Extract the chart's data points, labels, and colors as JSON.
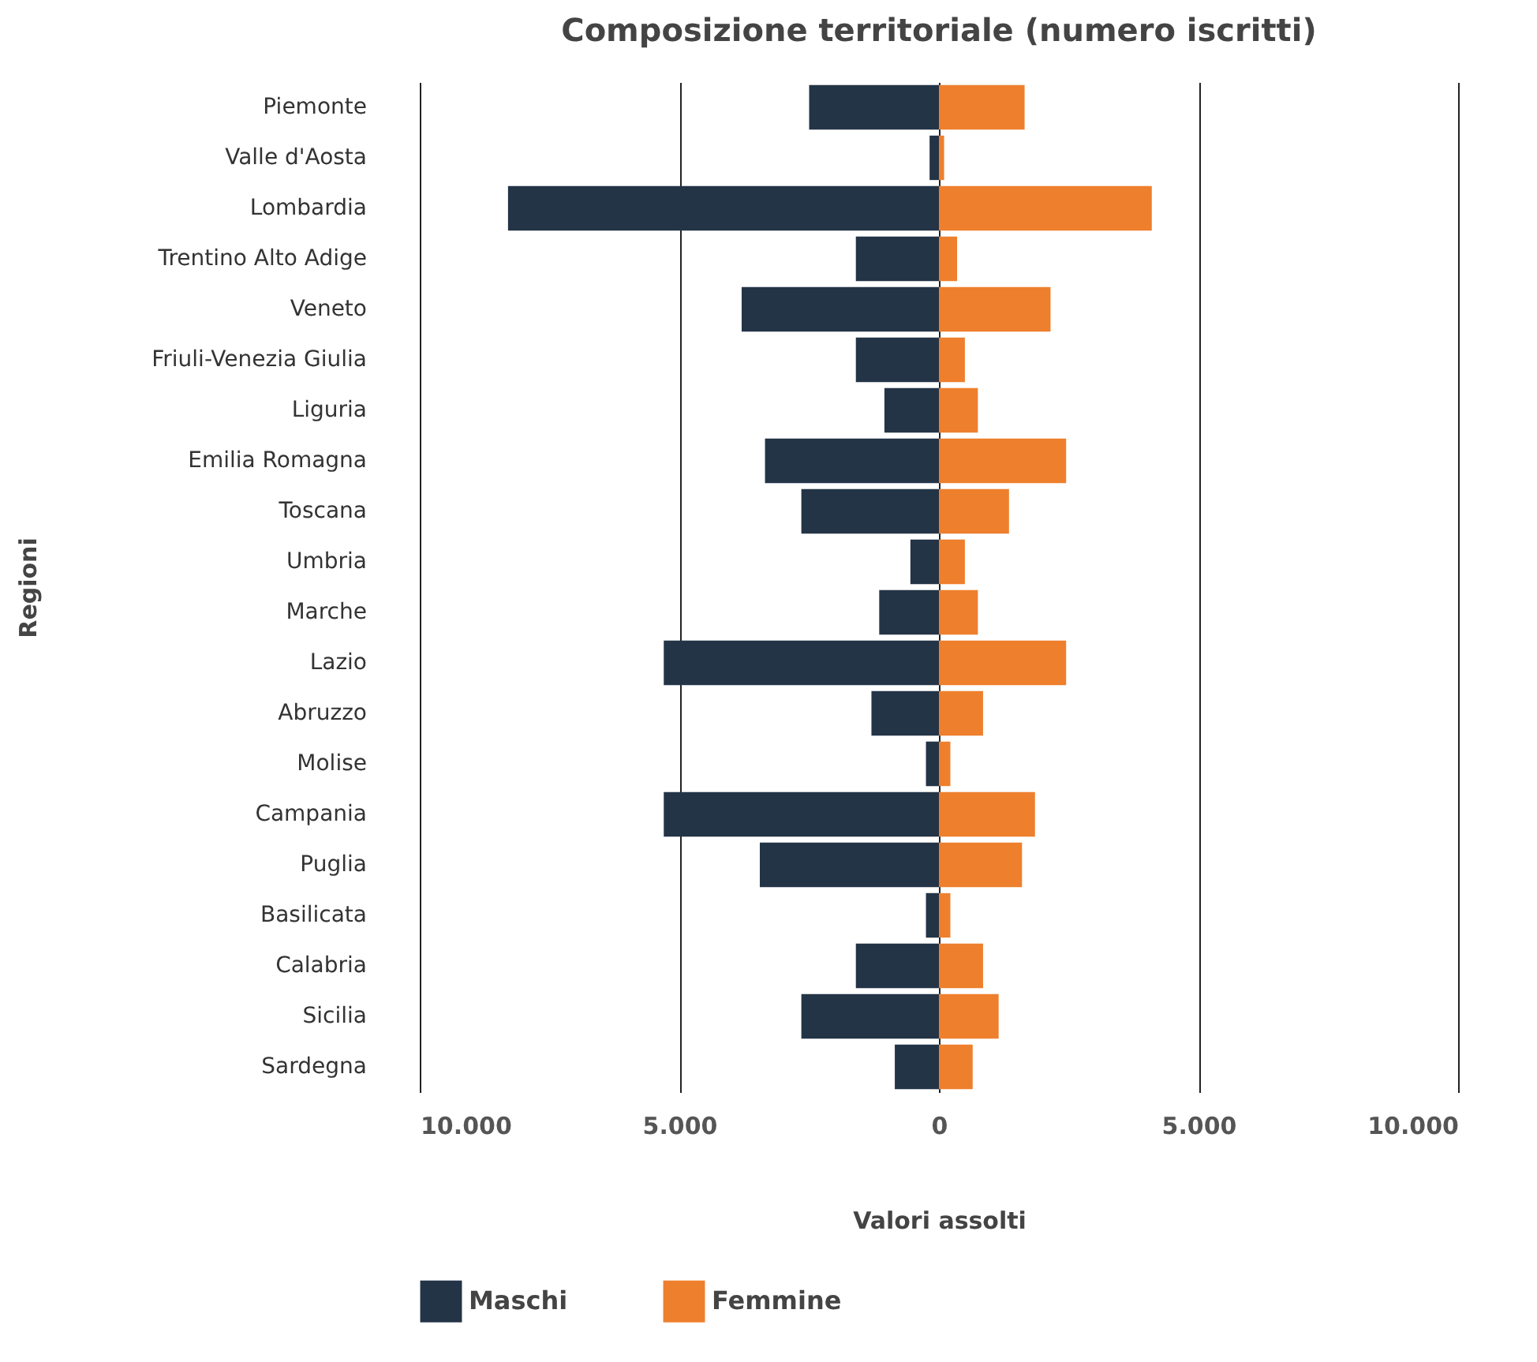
{
  "chart_data": {
    "type": "bar",
    "orientation": "horizontal",
    "title": "Composizione territoriale (numero iscritti)",
    "xlabel": "Valori assolti",
    "ylabel": "Regioni",
    "categories": [
      "Piemonte",
      "Valle d'Aosta",
      "Lombardia",
      "Trentino Alto Adige",
      "Veneto",
      "Friuli-Venezia Giulia",
      "Liguria",
      "Emilia Romagna",
      "Toscana",
      "Umbria",
      "Marche",
      "Lazio",
      "Abruzzo",
      "Molise",
      "Campania",
      "Puglia",
      "Basilicata",
      "Calabria",
      "Sicilia",
      "Sardegna"
    ],
    "series": [
      {
        "name": "Maschi",
        "color": "#243447",
        "values": [
          -2500,
          -180,
          -8300,
          -1600,
          -3800,
          -1600,
          -1050,
          -3350,
          -2650,
          -550,
          -1150,
          -5300,
          -1300,
          -250,
          -5300,
          -3450,
          -250,
          -1600,
          -2650,
          -850
        ]
      },
      {
        "name": "Femmine",
        "color": "#ee7f2d",
        "values": [
          1650,
          100,
          4100,
          350,
          2150,
          500,
          750,
          2450,
          1350,
          500,
          750,
          2450,
          850,
          220,
          1850,
          1600,
          220,
          850,
          1150,
          650
        ]
      }
    ],
    "xlim": [
      -10000,
      10000
    ],
    "xticks": [
      {
        "value": -10000,
        "label": "10.000"
      },
      {
        "value": -5000,
        "label": "5.000"
      },
      0,
      {
        "value": 5000,
        "label": "5.000"
      },
      {
        "value": 10000,
        "label": "10.000"
      }
    ],
    "stacked": true,
    "grid": "x",
    "legend": "bottom"
  }
}
